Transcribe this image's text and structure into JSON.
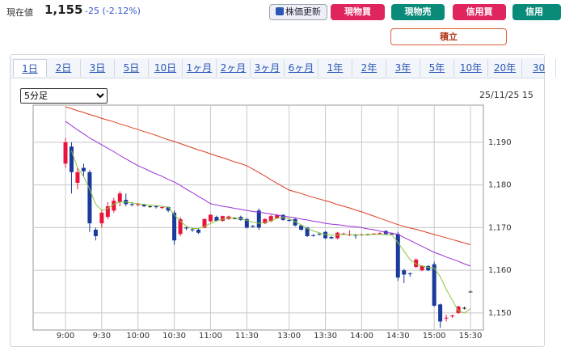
{
  "header": {
    "label": "現在値",
    "price": "1,155",
    "change": "-25 (-2.12%)"
  },
  "buttons": [
    "株価更新",
    "現物買",
    "現物売",
    "信用買",
    "信用",
    "積立"
  ],
  "tabs": [
    "1日",
    "2日",
    "3日",
    "5日",
    "10日",
    "1ヶ月",
    "2ヶ月",
    "3ヶ月",
    "6ヶ月",
    "1年",
    "2年",
    "3年",
    "5年",
    "10年",
    "20年",
    "30"
  ],
  "select": "5分足",
  "timestamp": "25/11/25 15",
  "chart_data": {
    "type": "candlestick",
    "categories": [
      "9:00",
      null,
      null,
      null,
      null,
      null,
      "9:30",
      null,
      null,
      null,
      null,
      null,
      "10:00",
      null,
      null,
      null,
      null,
      null,
      "10:30",
      null,
      null,
      null,
      null,
      null,
      "11:00",
      null,
      null,
      null,
      null,
      null,
      "11:30",
      null,
      null,
      null,
      null,
      null,
      null,
      "13:00",
      null,
      null,
      null,
      null,
      null,
      "13:30",
      null,
      null,
      null,
      null,
      null,
      "14:00",
      null,
      null,
      null,
      null,
      null,
      "14:30",
      null,
      null,
      null,
      null,
      null,
      "15:00",
      null,
      null,
      null,
      null,
      null,
      "15:30"
    ],
    "open": [
      1185,
      1189,
      1180.5,
      1184,
      1183,
      1169.5,
      1171,
      1172.5,
      1174,
      1176,
      1176.5,
      1175.5,
      1175.3,
      1175.4,
      1175,
      1175,
      1174.6,
      1174.8,
      1173.5,
      1168.5,
      1170,
      1169.6,
      1169.5,
      1170,
      1171.5,
      1172.5,
      1171.6,
      1172,
      1172.2,
      1172.5,
      1172,
      1170.4,
      1174,
      1171,
      1171.5,
      1172.2,
      1173,
      1171.8,
      1172,
      1170.5,
      1170,
      1168.2,
      1168.5,
      1169,
      1167.8,
      1167.5,
      1168.5,
      1168.3,
      1168.3,
      1168.3,
      1168.4,
      1168.5,
      1168.6,
      1169.2,
      1168.6,
      1168.5,
      1160,
      1159.3,
      1160.8,
      1160,
      1161,
      1161.4,
      1152,
      1148.8,
      1149.2,
      1150,
      1151.2,
      1155
    ],
    "high": [
      1191,
      1190,
      1184,
      1185,
      1183.5,
      1170,
      1174,
      1176,
      1177,
      1178.5,
      1178,
      1176,
      1175.8,
      1175.6,
      1175.3,
      1175.2,
      1175,
      1175,
      1174,
      1172.5,
      1170.3,
      1170,
      1169.8,
      1172.2,
      1173.2,
      1172.8,
      1172.8,
      1172.8,
      1172.5,
      1172.8,
      1172.2,
      1170.6,
      1174.5,
      1172.2,
      1173,
      1173.2,
      1173.1,
      1172,
      1172.2,
      1170.7,
      1170.2,
      1168.5,
      1168.8,
      1169.2,
      1168,
      1169,
      1168.8,
      1169.4,
      1168.5,
      1168.6,
      1168.6,
      1168.7,
      1168.9,
      1169.4,
      1168.8,
      1169,
      1160.3,
      1159.5,
      1162.8,
      1161.2,
      1161.2,
      1162,
      1152.2,
      1149.6,
      1149.6,
      1151.7,
      1151.5,
      1155.3
    ],
    "low": [
      1184,
      1178,
      1179,
      1182,
      1169,
      1167,
      1170,
      1172,
      1173.5,
      1175,
      1175,
      1175,
      1175,
      1174.8,
      1174.6,
      1174.5,
      1174.4,
      1173.6,
      1166,
      1168,
      1169.4,
      1169,
      1168.5,
      1169.8,
      1171.3,
      1171.4,
      1171.4,
      1171.8,
      1172,
      1171.6,
      1169.8,
      1170,
      1169.5,
      1170.8,
      1171.3,
      1172,
      1171.6,
      1171.4,
      1170.3,
      1169.3,
      1167.8,
      1167.9,
      1168.2,
      1167.3,
      1167.3,
      1167.3,
      1168.3,
      1168,
      1167.4,
      1168,
      1168.2,
      1168.3,
      1168.4,
      1168.3,
      1168.3,
      1157.5,
      1157,
      1158.5,
      1160.5,
      1159.8,
      1159.8,
      1151.5,
      1146.5,
      1148,
      1148.8,
      1149.8,
      1150.8,
      1154.8
    ],
    "close": [
      1190,
      1183,
      1183,
      1183.2,
      1171,
      1168,
      1173.5,
      1175,
      1176.3,
      1178,
      1175.5,
      1175.3,
      1175.5,
      1175,
      1175,
      1174.8,
      1174.8,
      1174,
      1167,
      1172,
      1169.8,
      1169.4,
      1168.8,
      1172,
      1173,
      1171.6,
      1172.7,
      1172.6,
      1172.2,
      1171.8,
      1170,
      1170.2,
      1170,
      1172,
      1172.7,
      1173,
      1171.8,
      1171.6,
      1170.5,
      1169.5,
      1168,
      1168.1,
      1168.4,
      1167.5,
      1167.5,
      1168.8,
      1168.6,
      1168.4,
      1168.1,
      1168.4,
      1168.4,
      1168.6,
      1168.7,
      1168.5,
      1168.5,
      1158.3,
      1159,
      1159.2,
      1162.5,
      1161,
      1160,
      1151.7,
      1148,
      1148.9,
      1149.4,
      1151.5,
      1151.2,
      1155
    ],
    "up_color": "#e8143c",
    "down_color": "#1a3a9c",
    "flat_color": "#333333",
    "series": [
      {
        "color": "#e03c1f",
        "values": [
          1198.3,
          1197.9,
          1197.4,
          1197,
          1196.5,
          1196.1,
          1195.6,
          1195.2,
          1194.8,
          1194.3,
          1193.9,
          1193.4,
          1193.0,
          1192.5,
          1192.1,
          1191.6,
          1191.1,
          1190.6,
          1190.2,
          1189.7,
          1189.2,
          1188.7,
          1188.2,
          1187.8,
          1187.3,
          1186.8,
          1186.4,
          1185.9,
          1185.4,
          1185,
          1184.5,
          1183.7,
          1182.9,
          1182.1,
          1181.2,
          1180.4,
          1179.6,
          1178.8,
          1178.4,
          1178,
          1177.5,
          1177.1,
          1176.7,
          1176.3,
          1175.9,
          1175.4,
          1175,
          1174.6,
          1174.1,
          1173.7,
          1173.2,
          1172.7,
          1172.2,
          1171.7,
          1171.2,
          1170.7,
          1170.3,
          1169.9,
          1169.6,
          1169.2,
          1168.8,
          1168.4,
          1168,
          1167.6,
          1167.2,
          1166.8,
          1166.4,
          1166
        ]
      },
      {
        "color": "#9b30d9",
        "values": [
          1194.9,
          1193.9,
          1192.9,
          1192,
          1191,
          1190.2,
          1189.4,
          1188.6,
          1187.8,
          1186.9,
          1186.1,
          1185.3,
          1184.5,
          1183.9,
          1183.2,
          1182.6,
          1182,
          1181.3,
          1180.7,
          1179.9,
          1179,
          1178.2,
          1177.3,
          1176.5,
          1175.6,
          1175.3,
          1175,
          1174.8,
          1174.5,
          1174.3,
          1174,
          1173.8,
          1173.6,
          1173.4,
          1173.2,
          1172.9,
          1172.7,
          1172.5,
          1172.3,
          1172,
          1171.8,
          1171.5,
          1171.3,
          1171,
          1170.8,
          1170.7,
          1170.5,
          1170.3,
          1170.2,
          1170,
          1169.7,
          1169.5,
          1169.2,
          1168.9,
          1168.7,
          1168.4,
          1167.7,
          1167,
          1166.3,
          1165.6,
          1164.9,
          1164.2,
          1163.7,
          1163.1,
          1162.6,
          1162.1,
          1161.5,
          1161
        ]
      },
      {
        "color": "#8cc63f",
        "values": [
          null,
          1188,
          1184,
          1182,
          1179,
          1175.5,
          1174,
          1174.5,
          1175.5,
          1176,
          1176,
          1175.8,
          1175.6,
          1175.4,
          1175.3,
          1175.2,
          1175,
          1174.8,
          1173,
          1171.5,
          1170.3,
          1169.8,
          1169.8,
          1170.3,
          1171,
          1171.6,
          1172,
          1172.2,
          1172.3,
          1172.1,
          1171.7,
          1171.3,
          1171,
          1171.2,
          1171.6,
          1172.2,
          1172.4,
          1172.1,
          1171.4,
          1170.6,
          1169.8,
          1169.2,
          1168.8,
          1168.4,
          1168.2,
          1168.3,
          1168.4,
          1168.4,
          1168.3,
          1168.3,
          1168.4,
          1168.4,
          1168.4,
          1168.3,
          1168.3,
          1166.5,
          1164.5,
          1162.5,
          1161.5,
          1161,
          1160.7,
          1160.5,
          1158.5,
          1155.5,
          1153,
          1150.5,
          1150,
          1151
        ]
      }
    ],
    "ylim": [
      1146,
      1198.7
    ],
    "yticks": [
      {
        "value": 1150,
        "label": "1,150"
      },
      {
        "value": 1160,
        "label": "1,160"
      },
      {
        "value": 1170,
        "label": "1,170"
      },
      {
        "value": 1180,
        "label": "1,180"
      },
      {
        "value": 1190,
        "label": "1,190"
      }
    ],
    "grid": true
  }
}
